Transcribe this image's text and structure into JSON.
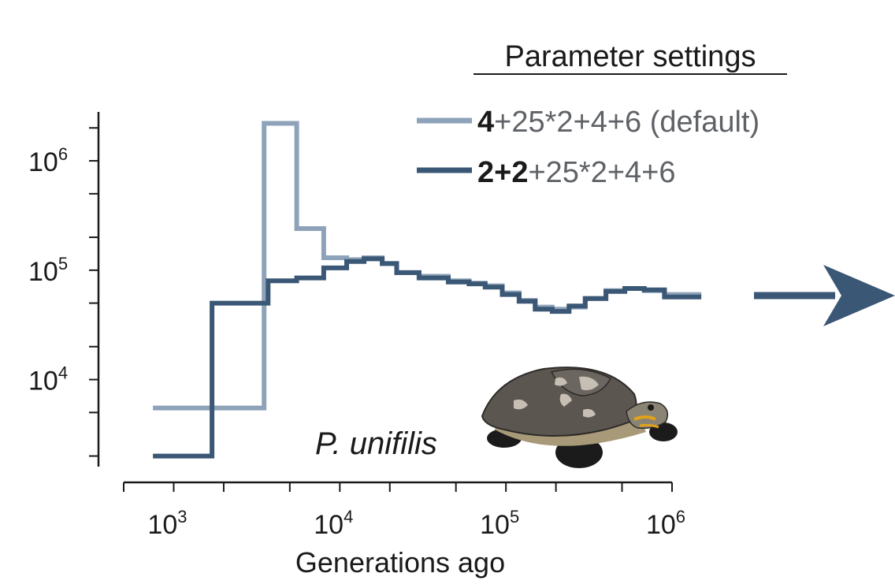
{
  "chart_data": {
    "type": "line",
    "subtype": "step",
    "xscale": "log",
    "yscale": "log",
    "xlabel": "Generations ago",
    "ylabel": "",
    "xlim": [
      500,
      1000000
    ],
    "ylim": [
      1600,
      2800000
    ],
    "x_ticks": [
      {
        "base": "10",
        "exp": "3",
        "value": 1000
      },
      {
        "base": "10",
        "exp": "4",
        "value": 10000
      },
      {
        "base": "10",
        "exp": "5",
        "value": 100000
      },
      {
        "base": "10",
        "exp": "6",
        "value": 1000000
      }
    ],
    "y_ticks": [
      {
        "base": "10",
        "exp": "4",
        "value": 10000
      },
      {
        "base": "10",
        "exp": "5",
        "value": 100000
      },
      {
        "base": "10",
        "exp": "6",
        "value": 1000000
      }
    ],
    "legend": {
      "title": "Parameter settings",
      "position": "top-right"
    },
    "annotation": "P. unifilis",
    "series": [
      {
        "name": "4+25*2+4+6 (default)",
        "label_bold": "4",
        "label_rest": "+25*2+4+6 (default)",
        "color": "#8ea3b9",
        "x": [
          750,
          3500,
          5500,
          8000,
          11000,
          14000,
          18000,
          22000,
          30000,
          45000,
          60000,
          75000,
          95000,
          120000,
          150000,
          190000,
          240000,
          300000,
          400000,
          520000,
          680000,
          900000,
          1500000
        ],
        "y": [
          5500,
          2200000,
          240000,
          130000,
          125000,
          130000,
          115000,
          95000,
          88000,
          80000,
          76000,
          72000,
          62000,
          53000,
          46000,
          44000,
          46000,
          55000,
          65000,
          68000,
          65000,
          60000,
          60000
        ]
      },
      {
        "name": "2+2+25*2+4+6",
        "label_bold": "2+2",
        "label_rest": "+25*2+4+6",
        "color": "#3a5775",
        "x": [
          750,
          1700,
          3700,
          5500,
          8000,
          11000,
          14000,
          18000,
          22000,
          30000,
          45000,
          60000,
          75000,
          95000,
          120000,
          150000,
          190000,
          240000,
          300000,
          400000,
          520000,
          680000,
          900000,
          1500000
        ],
        "y": [
          2000,
          50000,
          80000,
          85000,
          105000,
          120000,
          127000,
          115000,
          95000,
          85000,
          78000,
          75000,
          70000,
          60000,
          52000,
          44000,
          42000,
          47000,
          55000,
          64000,
          68000,
          66000,
          57000,
          57000
        ]
      }
    ]
  }
}
